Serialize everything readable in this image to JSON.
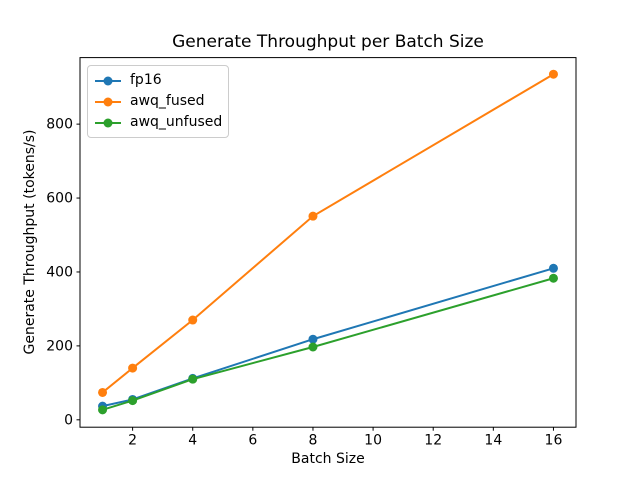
{
  "chart_data": {
    "type": "line",
    "title": "Generate Throughput per Batch Size",
    "xlabel": "Batch Size",
    "ylabel": "Generate Throughput (tokens/s)",
    "x": [
      1,
      2,
      4,
      8,
      16
    ],
    "series": [
      {
        "name": "fp16",
        "color": "#1f77b4",
        "values": [
          37,
          55,
          112,
          218,
          410
        ]
      },
      {
        "name": "awq_fused",
        "color": "#ff7f0e",
        "values": [
          74,
          140,
          270,
          551,
          935
        ]
      },
      {
        "name": "awq_unfused",
        "color": "#2ca02c",
        "values": [
          27,
          52,
          110,
          197,
          383
        ]
      }
    ],
    "xticks": [
      2,
      4,
      6,
      8,
      10,
      12,
      14,
      16
    ],
    "yticks": [
      0,
      200,
      400,
      600,
      800
    ],
    "xlim": [
      0.25,
      16.75
    ],
    "ylim": [
      -20,
      980
    ],
    "grid": false,
    "legend_position": "upper-left",
    "marker": "circle",
    "axis_color": "#000000",
    "background_color": "#ffffff"
  }
}
